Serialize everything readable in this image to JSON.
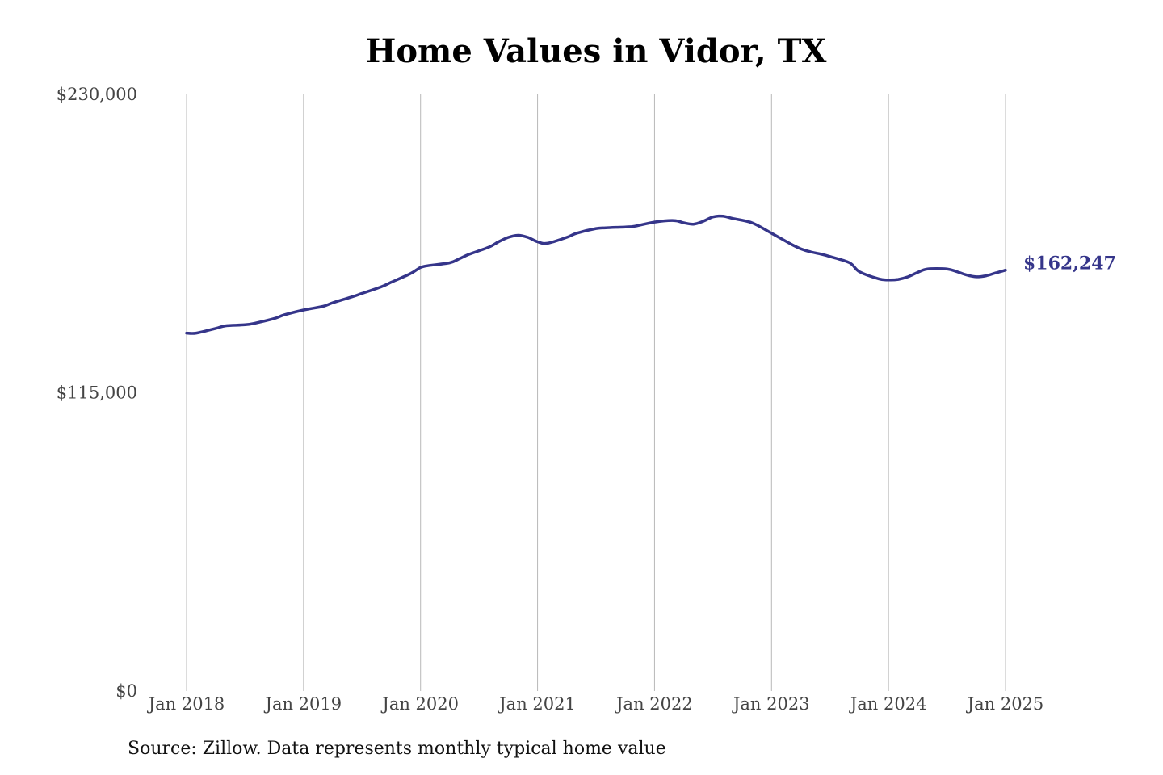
{
  "chart_data": {
    "type": "line",
    "title": "Home Values in Vidor, TX",
    "source": "Source: Zillow. Data represents monthly typical home value",
    "ylim": [
      0,
      230000
    ],
    "y_ticks": [
      {
        "value": 230000,
        "label": "$230,000"
      },
      {
        "value": 115000,
        "label": "$115,000"
      },
      {
        "value": 0,
        "label": "$0"
      }
    ],
    "x_ticks": [
      {
        "value": "2018-01",
        "label": "Jan 2018"
      },
      {
        "value": "2019-01",
        "label": "Jan 2019"
      },
      {
        "value": "2020-01",
        "label": "Jan 2020"
      },
      {
        "value": "2021-01",
        "label": "Jan 2021"
      },
      {
        "value": "2022-01",
        "label": "Jan 2022"
      },
      {
        "value": "2023-01",
        "label": "Jan 2023"
      },
      {
        "value": "2024-01",
        "label": "Jan 2024"
      },
      {
        "value": "2025-01",
        "label": "Jan 2025"
      }
    ],
    "grid": "vertical",
    "series": [
      {
        "color": "#35358a",
        "end_label": "$162,247",
        "points": [
          [
            "2018-01",
            138000
          ],
          [
            "2018-02",
            138000
          ],
          [
            "2018-04",
            139800
          ],
          [
            "2018-05",
            140800
          ],
          [
            "2018-07",
            141200
          ],
          [
            "2018-08",
            141800
          ],
          [
            "2018-10",
            143600
          ],
          [
            "2018-11",
            145000
          ],
          [
            "2019-01",
            146900
          ],
          [
            "2019-03",
            148300
          ],
          [
            "2019-04",
            149700
          ],
          [
            "2019-06",
            152000
          ],
          [
            "2019-07",
            153300
          ],
          [
            "2019-09",
            155900
          ],
          [
            "2019-10",
            157600
          ],
          [
            "2019-12",
            161000
          ],
          [
            "2020-01",
            163300
          ],
          [
            "2020-02",
            164100
          ],
          [
            "2020-04",
            165100
          ],
          [
            "2020-05",
            166700
          ],
          [
            "2020-06",
            168400
          ],
          [
            "2020-08",
            171100
          ],
          [
            "2020-09",
            173200
          ],
          [
            "2020-10",
            174900
          ],
          [
            "2020-11",
            175700
          ],
          [
            "2020-12",
            174900
          ],
          [
            "2021-01",
            173200
          ],
          [
            "2021-02",
            172600
          ],
          [
            "2021-04",
            174900
          ],
          [
            "2021-05",
            176500
          ],
          [
            "2021-07",
            178300
          ],
          [
            "2021-08",
            178600
          ],
          [
            "2021-10",
            178900
          ],
          [
            "2021-11",
            179200
          ],
          [
            "2022-01",
            180800
          ],
          [
            "2022-03",
            181400
          ],
          [
            "2022-04",
            180500
          ],
          [
            "2022-05",
            180000
          ],
          [
            "2022-06",
            181100
          ],
          [
            "2022-07",
            182800
          ],
          [
            "2022-08",
            183100
          ],
          [
            "2022-09",
            182200
          ],
          [
            "2022-11",
            180500
          ],
          [
            "2023-01",
            176500
          ],
          [
            "2023-03",
            172300
          ],
          [
            "2023-04",
            170500
          ],
          [
            "2023-05",
            169300
          ],
          [
            "2023-06",
            168500
          ],
          [
            "2023-07",
            167500
          ],
          [
            "2023-09",
            165100
          ],
          [
            "2023-10",
            161700
          ],
          [
            "2023-12",
            158900
          ],
          [
            "2024-01",
            158500
          ],
          [
            "2024-02",
            158700
          ],
          [
            "2024-03",
            159700
          ],
          [
            "2024-04",
            161400
          ],
          [
            "2024-05",
            162700
          ],
          [
            "2024-07",
            162700
          ],
          [
            "2024-08",
            161700
          ],
          [
            "2024-09",
            160400
          ],
          [
            "2024-10",
            159700
          ],
          [
            "2024-11",
            160100
          ],
          [
            "2024-12",
            161200
          ],
          [
            "2025-01",
            162247
          ]
        ]
      }
    ]
  }
}
